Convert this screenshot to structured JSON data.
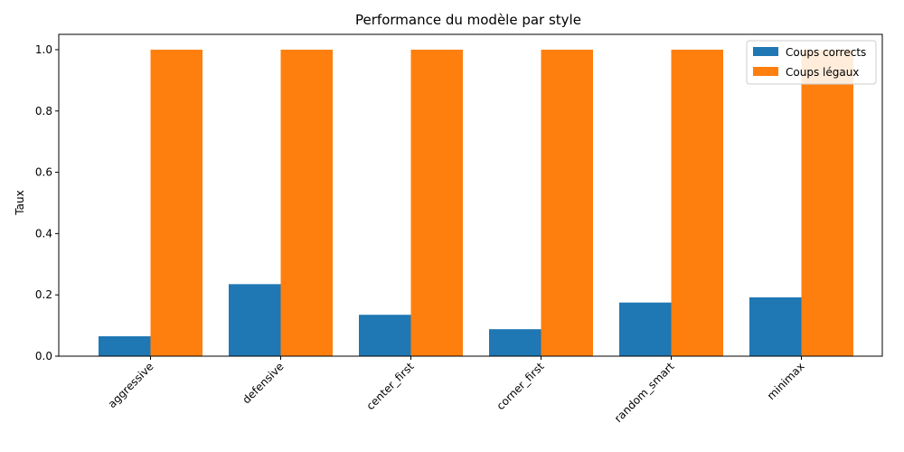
{
  "chart_data": {
    "type": "bar",
    "title": "Performance du modèle par style",
    "xlabel": "",
    "ylabel": "Taux",
    "categories": [
      "aggressive",
      "defensive",
      "center_first",
      "corner_first",
      "random_smart",
      "minimax"
    ],
    "series": [
      {
        "name": "Coups corrects",
        "color": "#1f77b4",
        "values": [
          0.065,
          0.235,
          0.135,
          0.088,
          0.175,
          0.192
        ]
      },
      {
        "name": "Coups légaux",
        "color": "#ff7f0e",
        "values": [
          1.0,
          1.0,
          1.0,
          1.0,
          1.0,
          1.0
        ]
      }
    ],
    "ylim": [
      0,
      1.05
    ],
    "yticks": [
      "0.0",
      "0.2",
      "0.4",
      "0.6",
      "0.8",
      "1.0"
    ],
    "grid": false,
    "legend_position": "top-right"
  }
}
